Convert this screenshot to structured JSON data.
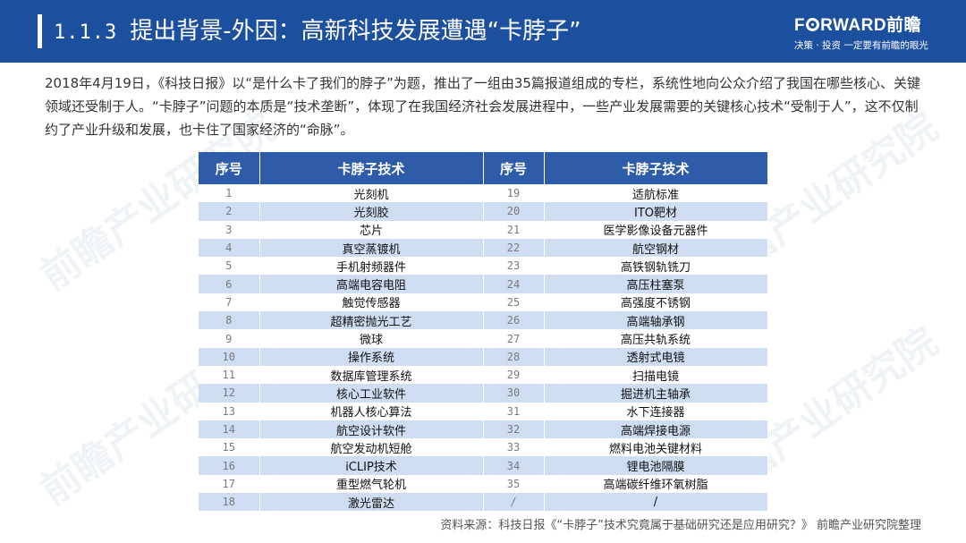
{
  "header": {
    "section_number": "1.1.3",
    "title": "提出背景-外因：高新科技发展遭遇“卡脖子”",
    "logo_pre": "F",
    "logo_post": "RWARD前瞻",
    "tagline": "决策 · 投资 一定要有前瞻的眼光",
    "color": "#1d4f9f"
  },
  "intro": "2018年4月19日，《科技日报》以“是什么卡了我们的脖子”为题，推出了一组由35篇报道组成的专栏，系统性地向公众介绍了我国在哪些核心、关键领域还受制于人。“卡脖子”问题的本质是“技术垄断”，体现了在我国经济社会发展进程中，一些产业发展需要的关键核心技术“受制于人”，这不仅制约了产业升级和发展，也卡住了国家经济的“命脉”。",
  "table": {
    "headers": [
      "序号",
      "卡脖子技术",
      "序号",
      "卡脖子技术"
    ],
    "rows": [
      [
        "1",
        "光刻机",
        "19",
        "适航标准"
      ],
      [
        "2",
        "光刻胶",
        "20",
        "ITO靶材"
      ],
      [
        "3",
        "芯片",
        "21",
        "医学影像设备元器件"
      ],
      [
        "4",
        "真空蒸镀机",
        "22",
        "航空钢材"
      ],
      [
        "5",
        "手机射频器件",
        "23",
        "高铁钢轨铣刀"
      ],
      [
        "6",
        "高端电容电阻",
        "24",
        "高压柱塞泵"
      ],
      [
        "7",
        "触觉传感器",
        "25",
        "高强度不锈钢"
      ],
      [
        "8",
        "超精密抛光工艺",
        "26",
        "高端轴承钢"
      ],
      [
        "9",
        "微球",
        "27",
        "高压共轨系统"
      ],
      [
        "10",
        "操作系统",
        "28",
        "透射式电镜"
      ],
      [
        "11",
        "数据库管理系统",
        "29",
        "扫描电镜"
      ],
      [
        "12",
        "核心工业软件",
        "30",
        "掘进机主轴承"
      ],
      [
        "13",
        "机器人核心算法",
        "31",
        "水下连接器"
      ],
      [
        "14",
        "航空设计软件",
        "32",
        "高端焊接电源"
      ],
      [
        "15",
        "航空发动机短舱",
        "33",
        "燃料电池关键材料"
      ],
      [
        "16",
        "iCLIP技术",
        "34",
        "锂电池隔膜"
      ],
      [
        "17",
        "重型燃气轮机",
        "35",
        "高端碳纤维环氧树脂"
      ],
      [
        "18",
        "激光雷达",
        "/",
        "/"
      ]
    ],
    "header_color": "#2f5ca8",
    "stripe_color": "#cfddf2"
  },
  "source": "资料来源：科技日报《“卡脖子”技术究竟属于基础研究还是应用研究？》   前瞻产业研究院整理"
}
